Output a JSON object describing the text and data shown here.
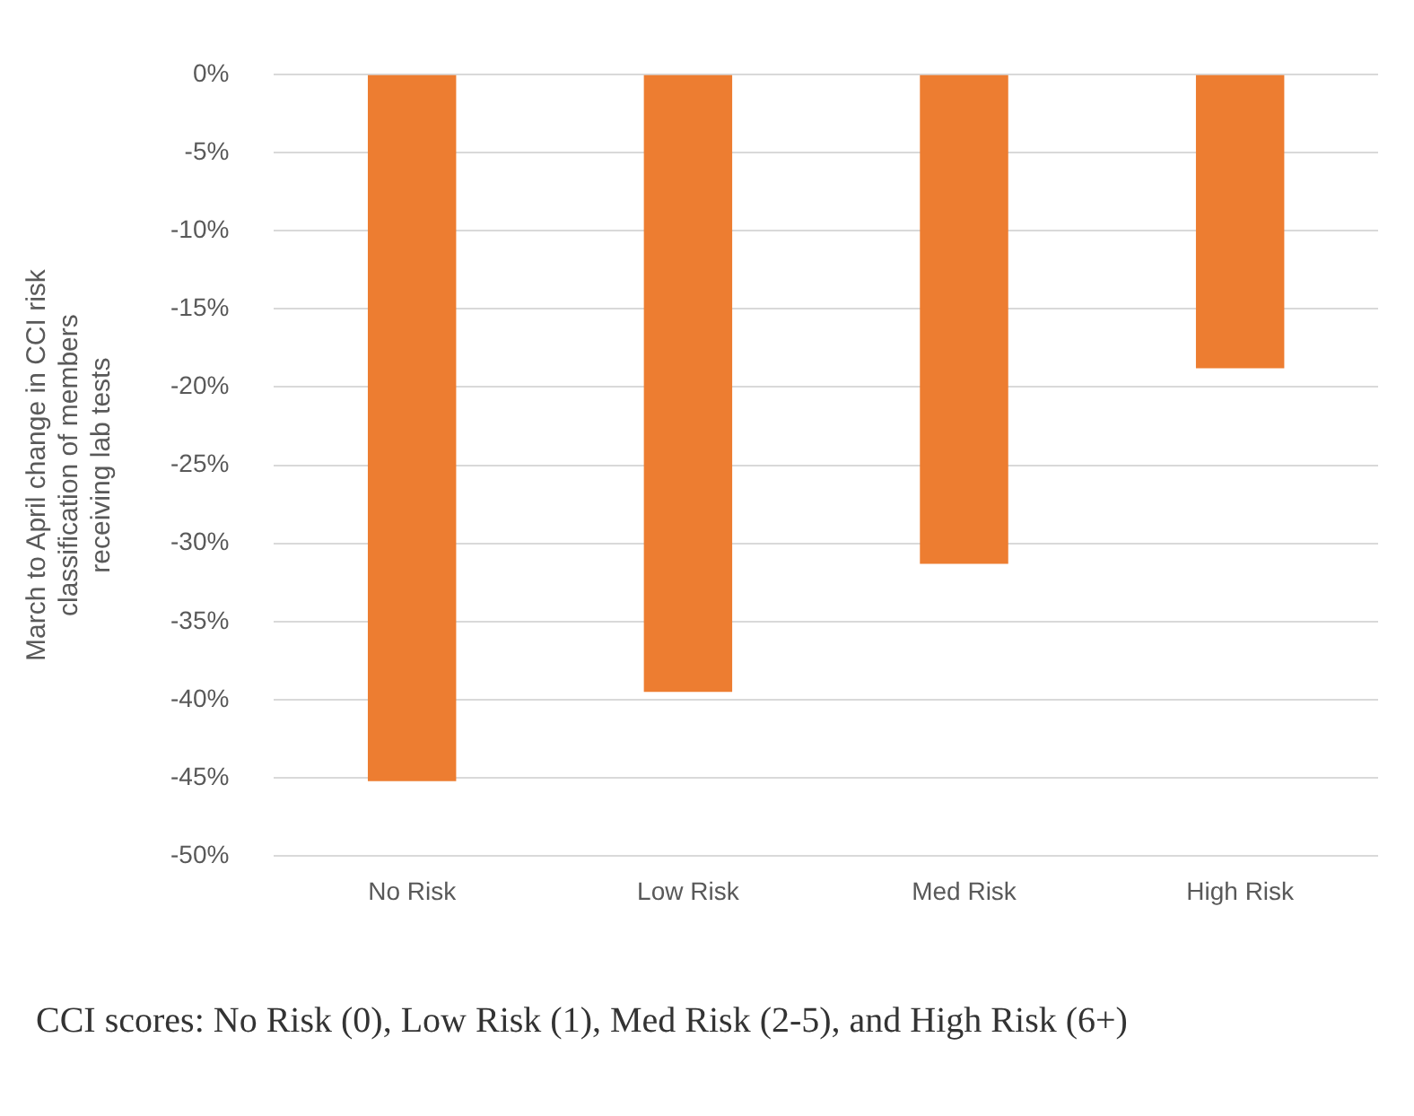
{
  "chart_data": {
    "type": "bar",
    "ylabel": "March to April change in CCI risk\nclassification of members\nreceiving lab tests",
    "categories": [
      "No Risk",
      "Low Risk",
      "Med Risk",
      "High Risk"
    ],
    "values": [
      -45.2,
      -39.5,
      -31.3,
      -18.8
    ],
    "color": "#ed7d31",
    "ylim": [
      -50,
      0
    ],
    "yticks": [
      {
        "value": 0,
        "label": "0%"
      },
      {
        "value": -5,
        "label": "-5%"
      },
      {
        "value": -10,
        "label": "-10%"
      },
      {
        "value": -15,
        "label": "-15%"
      },
      {
        "value": -20,
        "label": "-20%"
      },
      {
        "value": -25,
        "label": "-25%"
      },
      {
        "value": -30,
        "label": "-30%"
      },
      {
        "value": -35,
        "label": "-35%"
      },
      {
        "value": -40,
        "label": "-40%"
      },
      {
        "value": -45,
        "label": "-45%"
      },
      {
        "value": -50,
        "label": "-50%"
      }
    ],
    "grid": "y",
    "annotations": [
      "CCI scores: No Risk (0), Low Risk (1), Med Risk (2-5), and High Risk (6+)"
    ]
  }
}
